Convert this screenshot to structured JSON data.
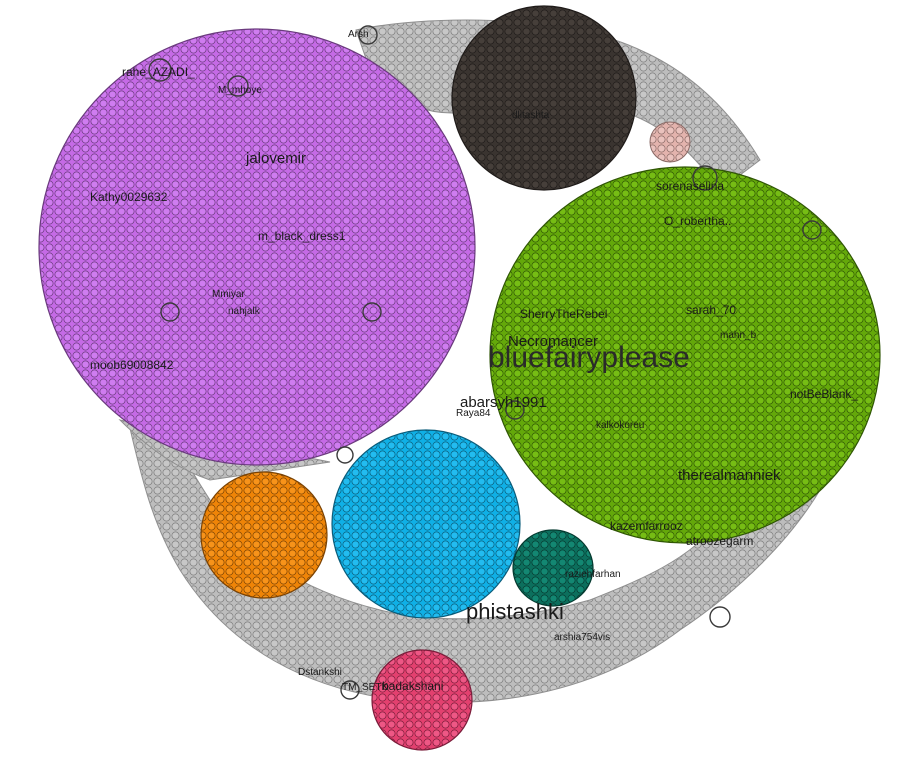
{
  "colors": {
    "background": "#ffffff",
    "gray_community": "#bdbdbd",
    "purple_community": "#cc77ee",
    "dark_community": "#3d3733",
    "pink_small": "#e7b9b4",
    "green_community": "#6fb410",
    "blue_community": "#16b6ec",
    "orange_community": "#f48a0c",
    "teal_community": "#0f7a67",
    "magenta_community": "#e8487a",
    "node_stroke": "#3a3a3a"
  },
  "communities": [
    {
      "id": "gray",
      "color_key": "gray_community"
    },
    {
      "id": "purple",
      "color_key": "purple_community"
    },
    {
      "id": "dark",
      "color_key": "dark_community"
    },
    {
      "id": "pink",
      "color_key": "pink_small"
    },
    {
      "id": "green",
      "color_key": "green_community"
    },
    {
      "id": "blue",
      "color_key": "blue_community"
    },
    {
      "id": "orange",
      "color_key": "orange_community"
    },
    {
      "id": "teal",
      "color_key": "teal_community"
    },
    {
      "id": "magenta",
      "color_key": "magenta_community"
    }
  ],
  "labels": {
    "bluefairyplease": "bluefairyplease",
    "phistashki": "phistashki",
    "jalovemir": "jalovemir",
    "kathy": "Kathy0029632",
    "black_dress": "m_black_dress1",
    "rahe_azadi": "rahe_AZADI_",
    "mmohye": "M_mhoye",
    "mmoo": "moob69008842",
    "mmiyar": "Mmiyar",
    "nahjalk": "nahjalk",
    "arsh_top": "Arsh",
    "dlitashta": "dlitashta",
    "sorenaselina": "sorenaselina",
    "robert": "O_robertha..",
    "sherry": "SherryTheRebel",
    "necromancer": "Necromancer",
    "sarah": "sarah_70",
    "mahn": "mahn_b",
    "abarsyh": "abarsyh1991",
    "raya": "Raya84",
    "notbeblank": "notBeBlank_",
    "therealmanniek": "therealmanniek",
    "kalkokoreu": "kalkokoreu",
    "kazemfarrooz": "kazemfarrooz",
    "atroozegarm": "atroozegarm",
    "raziehfarhan": "raziehfarhan",
    "arshia": "arshia754vis",
    "dastghazi": "Dstankshi",
    "tm_setk": "TM_SETK",
    "badakshani": "badakshani"
  }
}
